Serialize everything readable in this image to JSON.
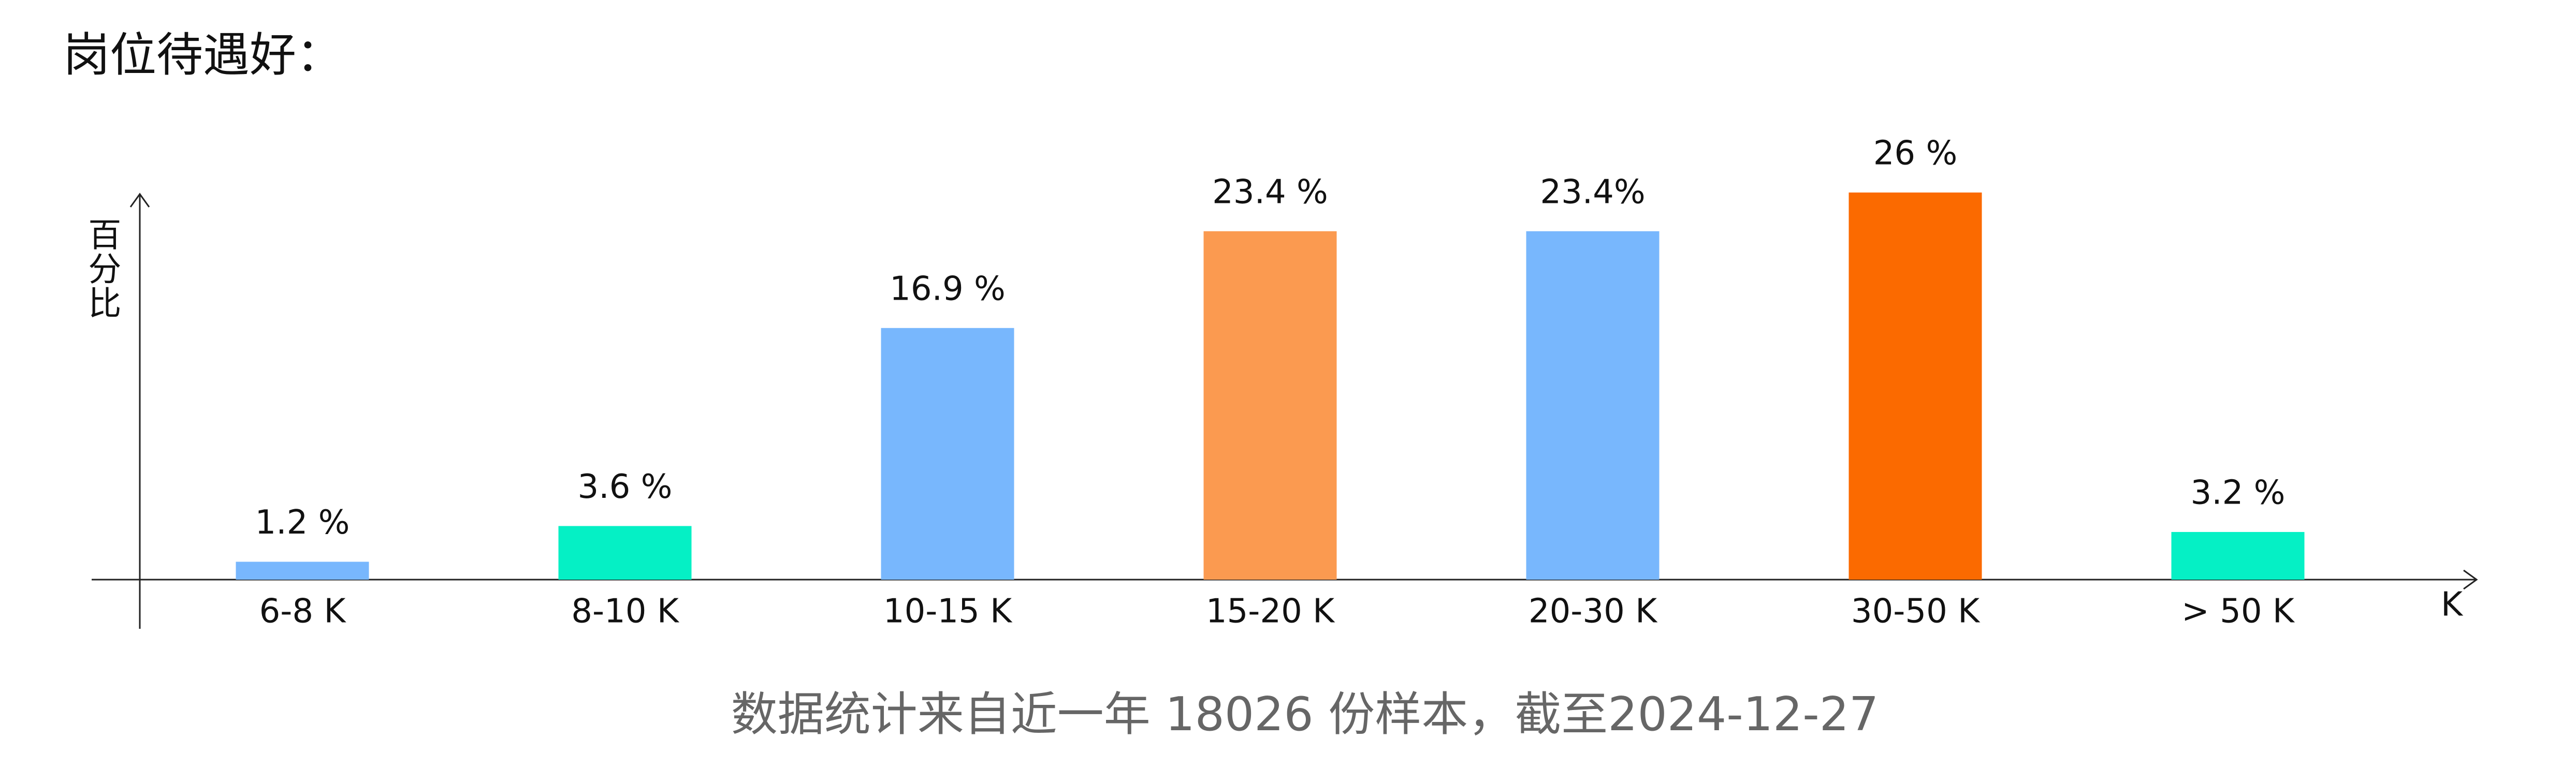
{
  "chart_data": {
    "type": "bar",
    "title": "岗位待遇好：",
    "y_label": "百分比",
    "x_label": "K",
    "footnote": "数据统计来自近一年 18026 份样本，截至2024-12-27",
    "categories": [
      "6-8 K",
      "8-10 K",
      "10-15 K",
      "15-20 K",
      "20-30 K",
      "30-50 K",
      "> 50 K"
    ],
    "values": [
      1.2,
      3.6,
      16.9,
      23.4,
      23.4,
      26,
      3.2
    ],
    "value_labels": [
      "1.2 %",
      "3.6 %",
      "16.9 %",
      "23.4 %",
      "23.4%",
      "26 %",
      "3.2 %"
    ],
    "colors": [
      "#78b7fd",
      "#05f0c5",
      "#78b7fd",
      "#fb9a50",
      "#78b7fd",
      "#fb6a00",
      "#05f0c5"
    ],
    "ylim": [
      0,
      26
    ],
    "grid": false
  }
}
